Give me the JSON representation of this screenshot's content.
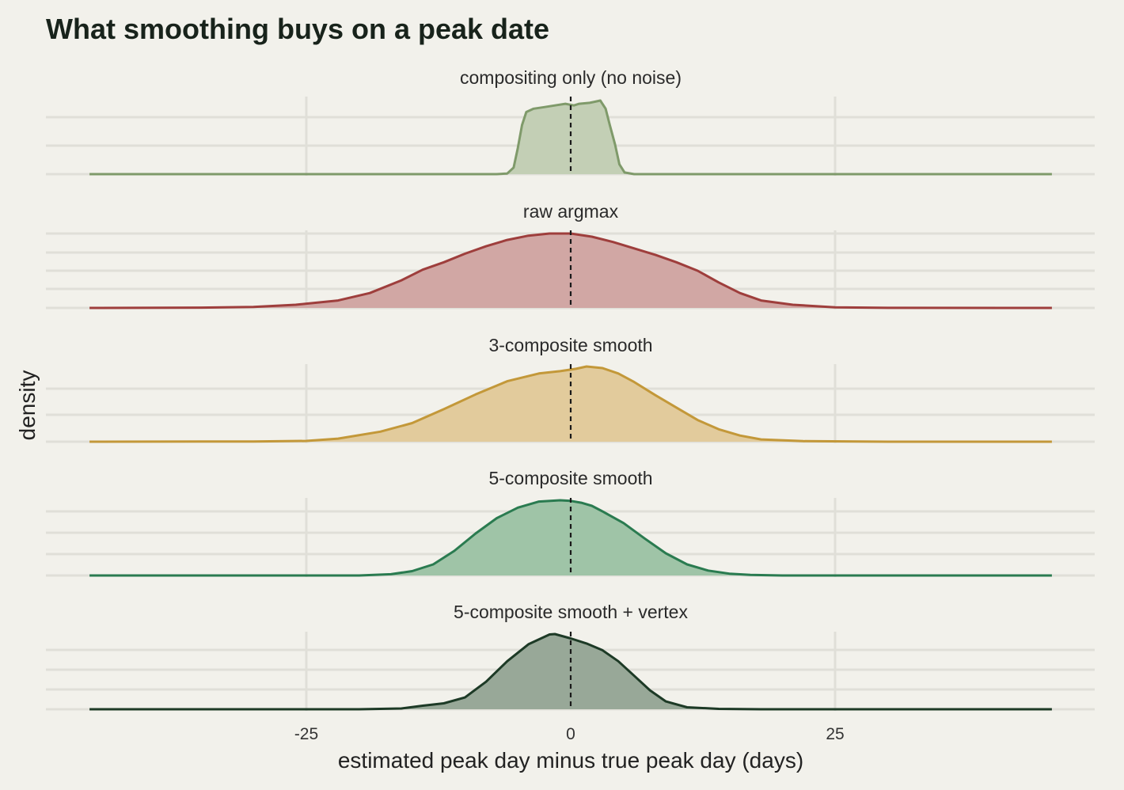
{
  "chart_data": {
    "type": "area",
    "title": "What smoothing buys on a peak date",
    "xlabel": "estimated peak day minus true peak day (days)",
    "ylabel": "density",
    "xlim": [
      -50,
      50
    ],
    "x_ticks": [
      -25,
      0,
      25
    ],
    "x_tick_labels": [
      "-25",
      "0",
      "25"
    ],
    "reference_line_x": 0,
    "grid": true,
    "series": [
      {
        "name": "compositing only (no noise)",
        "color": "#7f9a6a",
        "fill": "#c3cfb5",
        "points": [
          [
            -45.5,
            0
          ],
          [
            -7,
            0
          ],
          [
            -6,
            0.002
          ],
          [
            -5.4,
            0.02
          ],
          [
            -5,
            0.08
          ],
          [
            -4.6,
            0.15
          ],
          [
            -4.2,
            0.19
          ],
          [
            -3.5,
            0.2
          ],
          [
            -2.5,
            0.205
          ],
          [
            -1.5,
            0.21
          ],
          [
            -0.5,
            0.215
          ],
          [
            0.3,
            0.21
          ],
          [
            0.8,
            0.215
          ],
          [
            1.8,
            0.218
          ],
          [
            2.8,
            0.225
          ],
          [
            3.3,
            0.2
          ],
          [
            3.7,
            0.15
          ],
          [
            4.2,
            0.09
          ],
          [
            4.6,
            0.03
          ],
          [
            5.1,
            0.005
          ],
          [
            6,
            0
          ],
          [
            45.5,
            0
          ]
        ]
      },
      {
        "name": "raw argmax",
        "color": "#9e3e3c",
        "fill": "#d1a7a4",
        "points": [
          [
            -45.5,
            0
          ],
          [
            -35,
            0.0003
          ],
          [
            -30,
            0.001
          ],
          [
            -26,
            0.003
          ],
          [
            -22,
            0.007
          ],
          [
            -19,
            0.014
          ],
          [
            -16,
            0.026
          ],
          [
            -14,
            0.036
          ],
          [
            -12,
            0.043
          ],
          [
            -10,
            0.051
          ],
          [
            -8,
            0.058
          ],
          [
            -6,
            0.064
          ],
          [
            -4,
            0.068
          ],
          [
            -2,
            0.07
          ],
          [
            0,
            0.07
          ],
          [
            2,
            0.067
          ],
          [
            4,
            0.062
          ],
          [
            6,
            0.056
          ],
          [
            8,
            0.05
          ],
          [
            10,
            0.043
          ],
          [
            12,
            0.035
          ],
          [
            14,
            0.024
          ],
          [
            16,
            0.014
          ],
          [
            18,
            0.007
          ],
          [
            21,
            0.003
          ],
          [
            25,
            0.0006
          ],
          [
            30,
            0.0001
          ],
          [
            45.5,
            0
          ]
        ]
      },
      {
        "name": "3-composite smooth",
        "color": "#c39839",
        "fill": "#e2cb9c",
        "points": [
          [
            -45.5,
            0
          ],
          [
            -30,
            0.0003
          ],
          [
            -25,
            0.001
          ],
          [
            -22,
            0.004
          ],
          [
            -18,
            0.013
          ],
          [
            -15,
            0.024
          ],
          [
            -12,
            0.042
          ],
          [
            -9,
            0.061
          ],
          [
            -6,
            0.078
          ],
          [
            -3,
            0.088
          ],
          [
            -1,
            0.091
          ],
          [
            0.5,
            0.094
          ],
          [
            1.5,
            0.097
          ],
          [
            3,
            0.095
          ],
          [
            4.5,
            0.088
          ],
          [
            6,
            0.077
          ],
          [
            8,
            0.06
          ],
          [
            10,
            0.044
          ],
          [
            12,
            0.028
          ],
          [
            14,
            0.016
          ],
          [
            16,
            0.008
          ],
          [
            18,
            0.003
          ],
          [
            22,
            0.0007
          ],
          [
            30,
            0
          ],
          [
            45.5,
            0
          ]
        ]
      },
      {
        "name": "5-composite smooth",
        "color": "#2a7b50",
        "fill": "#9fc4a7",
        "points": [
          [
            -45.5,
            0
          ],
          [
            -20,
            0
          ],
          [
            -17,
            0.002
          ],
          [
            -15,
            0.007
          ],
          [
            -13,
            0.018
          ],
          [
            -11,
            0.04
          ],
          [
            -9,
            0.068
          ],
          [
            -7,
            0.093
          ],
          [
            -5,
            0.11
          ],
          [
            -3,
            0.12
          ],
          [
            -1,
            0.122
          ],
          [
            0,
            0.121
          ],
          [
            1,
            0.118
          ],
          [
            2,
            0.113
          ],
          [
            3,
            0.104
          ],
          [
            5,
            0.085
          ],
          [
            7,
            0.06
          ],
          [
            9,
            0.036
          ],
          [
            11,
            0.018
          ],
          [
            13,
            0.008
          ],
          [
            15,
            0.003
          ],
          [
            17,
            0.001
          ],
          [
            20,
            0
          ],
          [
            45.5,
            0
          ]
        ]
      },
      {
        "name": "5-composite smooth + vertex",
        "color": "#1d3a26",
        "fill": "#98a898",
        "points": [
          [
            -45.5,
            0
          ],
          [
            -20,
            0
          ],
          [
            -16,
            0.002
          ],
          [
            -14,
            0.009
          ],
          [
            -12,
            0.015
          ],
          [
            -10,
            0.03
          ],
          [
            -8,
            0.07
          ],
          [
            -6,
            0.122
          ],
          [
            -4,
            0.165
          ],
          [
            -2,
            0.19
          ],
          [
            -1.5,
            0.191
          ],
          [
            0,
            0.18
          ],
          [
            1.5,
            0.167
          ],
          [
            3,
            0.15
          ],
          [
            4.5,
            0.122
          ],
          [
            6,
            0.085
          ],
          [
            7.5,
            0.048
          ],
          [
            9,
            0.02
          ],
          [
            11,
            0.005
          ],
          [
            14,
            0.001
          ],
          [
            18,
            0
          ],
          [
            45.5,
            0
          ]
        ]
      }
    ]
  }
}
